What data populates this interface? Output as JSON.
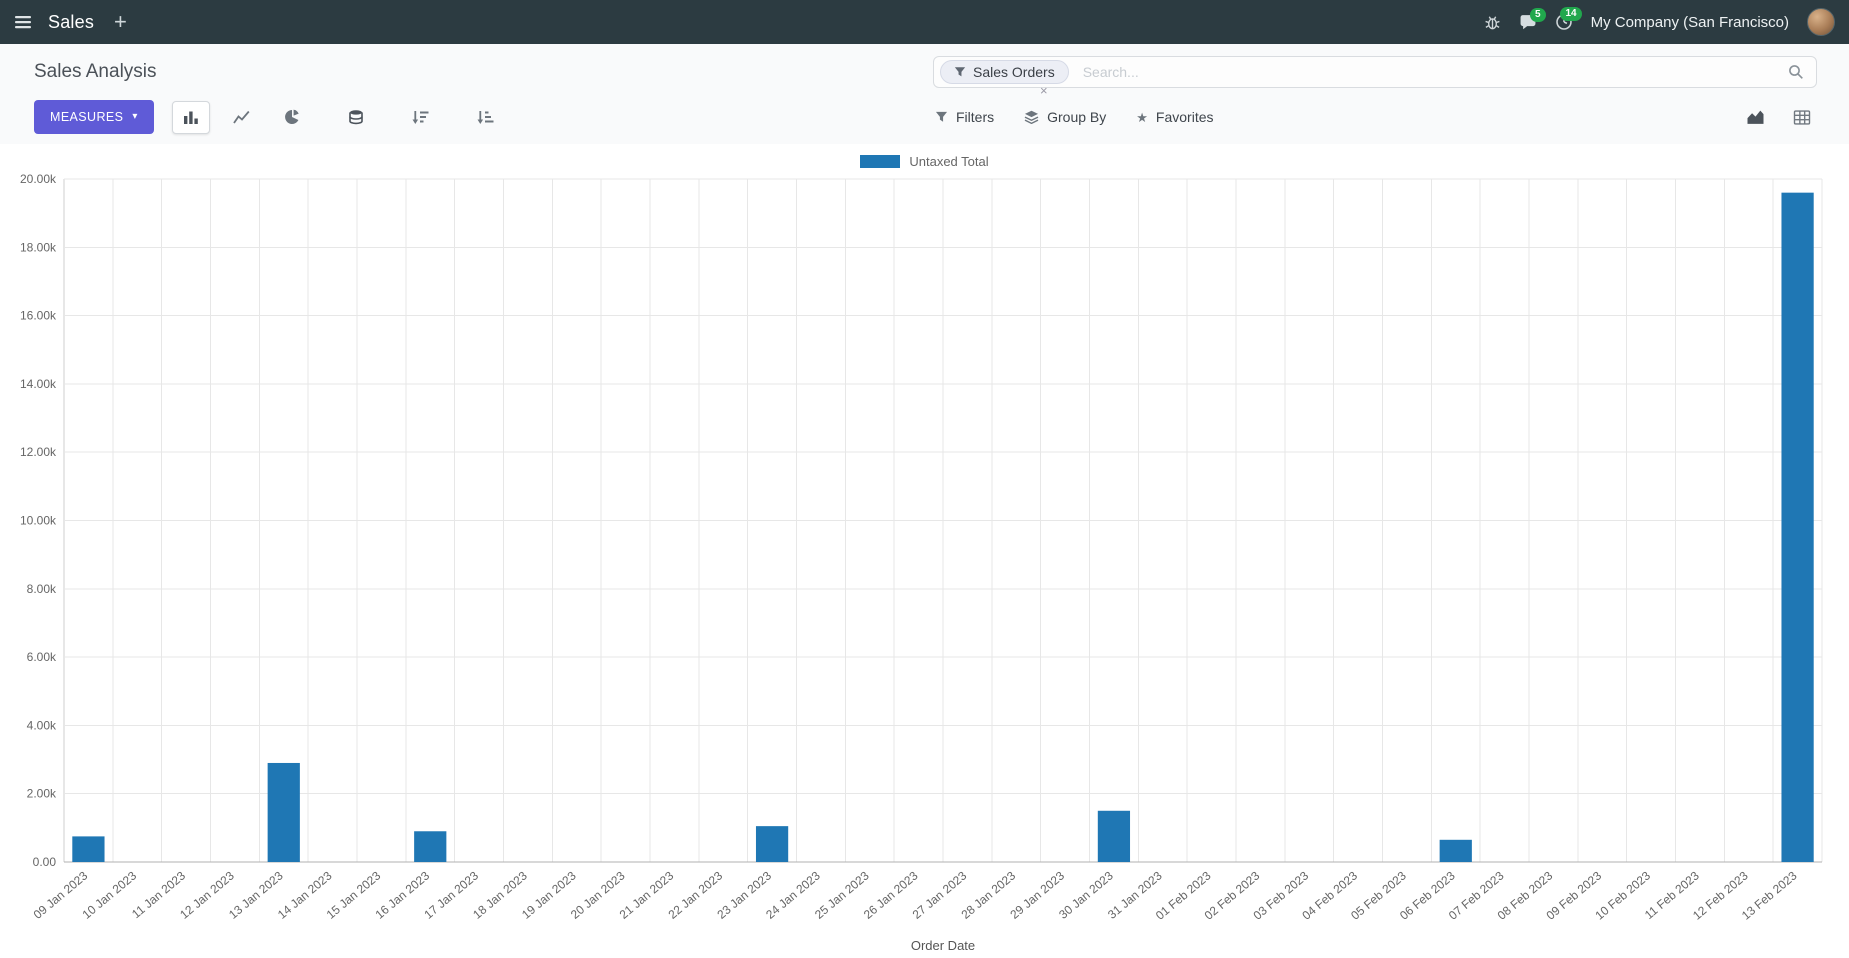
{
  "navbar": {
    "app_name": "Sales",
    "company": "My Company (San Francisco)",
    "message_badge": "5",
    "activity_badge": "14"
  },
  "control_panel": {
    "breadcrumb": "Sales Analysis",
    "measures_label": "MEASURES",
    "filters_label": "Filters",
    "group_by_label": "Group By",
    "favorites_label": "Favorites",
    "search": {
      "facet": "Sales Orders",
      "facet_remove": "×",
      "placeholder": "Search..."
    }
  },
  "chart_data": {
    "type": "bar",
    "legend": "Untaxed Total",
    "series_color": "#1f77b4",
    "xlabel": "Order Date",
    "ylim": [
      0,
      20000
    ],
    "ytick_step": 2000,
    "ytick_labels": [
      "0.00",
      "2.00k",
      "4.00k",
      "6.00k",
      "8.00k",
      "10.00k",
      "12.00k",
      "14.00k",
      "16.00k",
      "18.00k",
      "20.00k"
    ],
    "categories": [
      "09 Jan 2023",
      "10 Jan 2023",
      "11 Jan 2023",
      "12 Jan 2023",
      "13 Jan 2023",
      "14 Jan 2023",
      "15 Jan 2023",
      "16 Jan 2023",
      "17 Jan 2023",
      "18 Jan 2023",
      "19 Jan 2023",
      "20 Jan 2023",
      "21 Jan 2023",
      "22 Jan 2023",
      "23 Jan 2023",
      "24 Jan 2023",
      "25 Jan 2023",
      "26 Jan 2023",
      "27 Jan 2023",
      "28 Jan 2023",
      "29 Jan 2023",
      "30 Jan 2023",
      "31 Jan 2023",
      "01 Feb 2023",
      "02 Feb 2023",
      "03 Feb 2023",
      "04 Feb 2023",
      "05 Feb 2023",
      "06 Feb 2023",
      "07 Feb 2023",
      "08 Feb 2023",
      "09 Feb 2023",
      "10 Feb 2023",
      "11 Feb 2023",
      "12 Feb 2023",
      "13 Feb 2023"
    ],
    "values": [
      750,
      0,
      0,
      0,
      2900,
      0,
      0,
      900,
      0,
      0,
      0,
      0,
      0,
      0,
      1050,
      0,
      0,
      0,
      0,
      0,
      0,
      1500,
      0,
      0,
      0,
      0,
      0,
      0,
      650,
      0,
      0,
      0,
      0,
      0,
      0,
      19600
    ]
  }
}
